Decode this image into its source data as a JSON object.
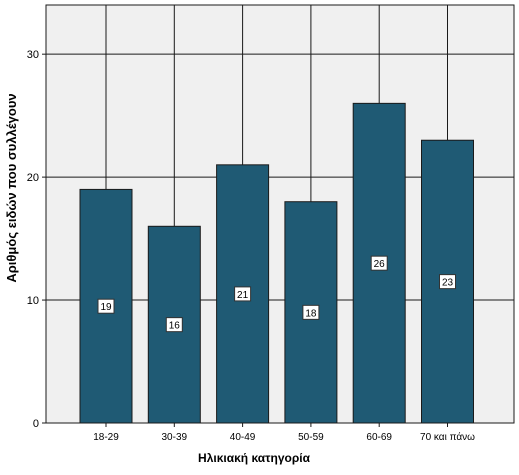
{
  "chart_data": {
    "type": "bar",
    "categories": [
      "18-29",
      "30-39",
      "40-49",
      "50-59",
      "60-69",
      "70 και πάνω"
    ],
    "values": [
      19,
      16,
      21,
      18,
      26,
      23
    ],
    "data_labels": [
      "19",
      "16",
      "21",
      "18",
      "26",
      "23"
    ],
    "title": "",
    "xlabel": "Ηλικιακή κατηγορία",
    "ylabel": "Αριθμός ειδών που συλλέγουν",
    "ylim": [
      0,
      34
    ],
    "yticks": [
      0,
      10,
      20,
      30
    ],
    "ytick_labels": [
      "0",
      "10",
      "20",
      "30"
    ],
    "grid": true,
    "bar_color": "#1f5a74",
    "bar_edge_color": "#1a1a1a",
    "plot_background": "#f0f0f0",
    "gridline_color": "#1a1a1a"
  }
}
